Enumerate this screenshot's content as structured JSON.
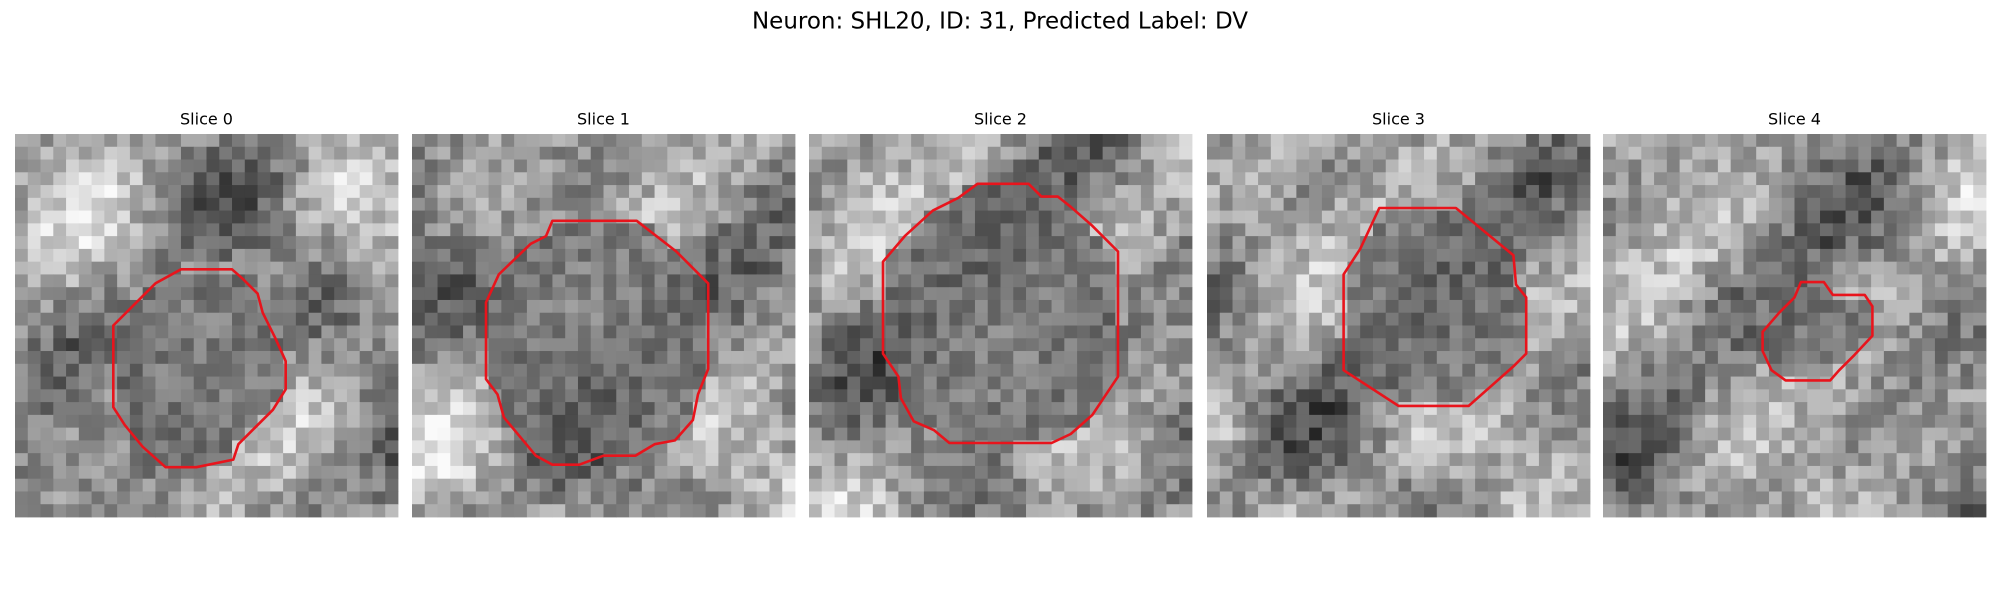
{
  "title": "Neuron: SHL20, ID: 31, Predicted Label: DV",
  "panels": [
    {
      "title": "Slice 0"
    },
    {
      "title": "Slice 1"
    },
    {
      "title": "Slice 2"
    },
    {
      "title": "Slice 3"
    },
    {
      "title": "Slice 4"
    }
  ]
}
